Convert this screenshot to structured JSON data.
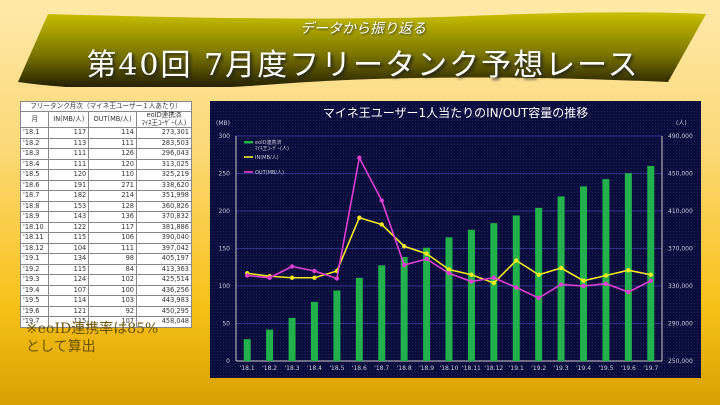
{
  "banner": {
    "subtitle": "データから振り返る",
    "title": "第40回 7月度フリータンク予想レース"
  },
  "table": {
    "title": "フリータンク月次（マイネ王ユーザー１人あたり）",
    "headers": [
      "月",
      "IN(MB/人)",
      "OUT(MB/人)",
      "eoID連携済",
      "ﾏｲﾈ王ﾕｰｻﾞｰ(人)"
    ],
    "rows": [
      [
        "'18.1",
        "117",
        "114",
        "273,301"
      ],
      [
        "'18.2",
        "113",
        "111",
        "283,503"
      ],
      [
        "'18.3",
        "111",
        "126",
        "296,043"
      ],
      [
        "'18.4",
        "111",
        "120",
        "313,025"
      ],
      [
        "'18.5",
        "120",
        "110",
        "325,219"
      ],
      [
        "'18.6",
        "191",
        "271",
        "338,620"
      ],
      [
        "'18.7",
        "182",
        "214",
        "351,998"
      ],
      [
        "'18.8",
        "153",
        "128",
        "360,826"
      ],
      [
        "'18.9",
        "143",
        "136",
        "370,832"
      ],
      [
        "'18.10",
        "122",
        "117",
        "381,886"
      ],
      [
        "'18.11",
        "115",
        "106",
        "390,040"
      ],
      [
        "'18.12",
        "104",
        "111",
        "397,042"
      ],
      [
        "'19.1",
        "134",
        "98",
        "405,197"
      ],
      [
        "'19.2",
        "115",
        "84",
        "413,363"
      ],
      [
        "'19.3",
        "124",
        "102",
        "425,514"
      ],
      [
        "'19.4",
        "107",
        "100",
        "436,256"
      ],
      [
        "'19.5",
        "114",
        "103",
        "443,983"
      ],
      [
        "'19.6",
        "121",
        "92",
        "450,295"
      ],
      [
        "'19.7",
        "115",
        "107",
        "458,048"
      ]
    ]
  },
  "note": {
    "line1": "※eoID連携率は85%",
    "line2": "として算出"
  },
  "chart": {
    "title": "マイネ王ユーザー1人当たりのIN/OUT容量の推移",
    "left_unit": "(MB)",
    "right_unit": "(人)"
  },
  "chart_data": {
    "type": "bar+line",
    "title": "マイネ王ユーザー1人当たりのIN/OUT容量の推移",
    "categories": [
      "'18.1",
      "'18.2",
      "'18.3",
      "'18.4",
      "'18.5",
      "'18.6",
      "'18.7",
      "'18.8",
      "'18.9",
      "'18.10",
      "'18.11",
      "'18.12",
      "'19.1",
      "'19.2",
      "'19.3",
      "'19.4",
      "'19.5",
      "'19.6",
      "'19.7"
    ],
    "series": [
      {
        "name": "eoID連携済 ﾏｲﾈ王ﾕｰｻﾞｰ(人)",
        "type": "bar",
        "axis": "right",
        "color": "#22b14c",
        "values": [
          273301,
          283503,
          296043,
          313025,
          325219,
          338620,
          351998,
          360826,
          370832,
          381886,
          390040,
          397042,
          405197,
          413363,
          425514,
          436256,
          443983,
          450295,
          458048
        ]
      },
      {
        "name": "IN(MB/人)",
        "type": "line",
        "axis": "left",
        "color": "#f2ea1c",
        "values": [
          117,
          113,
          111,
          111,
          120,
          191,
          182,
          153,
          143,
          122,
          115,
          104,
          134,
          115,
          124,
          107,
          114,
          121,
          115
        ]
      },
      {
        "name": "OUT(MB/人)",
        "type": "line",
        "axis": "left",
        "color": "#e040d0",
        "values": [
          114,
          111,
          126,
          120,
          110,
          271,
          214,
          128,
          136,
          117,
          106,
          111,
          98,
          84,
          102,
          100,
          103,
          92,
          107
        ]
      }
    ],
    "left_axis": {
      "label": "(MB)",
      "ylim": [
        0,
        300
      ],
      "ticks": [
        0,
        50,
        100,
        150,
        200,
        250,
        300
      ]
    },
    "right_axis": {
      "label": "(人)",
      "ylim": [
        250000,
        490000
      ],
      "ticks": [
        "250,000",
        "290,000",
        "330,000",
        "370,000",
        "410,000",
        "450,000",
        "490,000"
      ]
    },
    "legend": [
      "eoID連携済 ﾏｲﾈ王ﾕｰｻﾞｰ(人)",
      "IN(MB/人)",
      "OUT(MB/人)"
    ],
    "legend_position": "top-left inside",
    "grid": true
  }
}
